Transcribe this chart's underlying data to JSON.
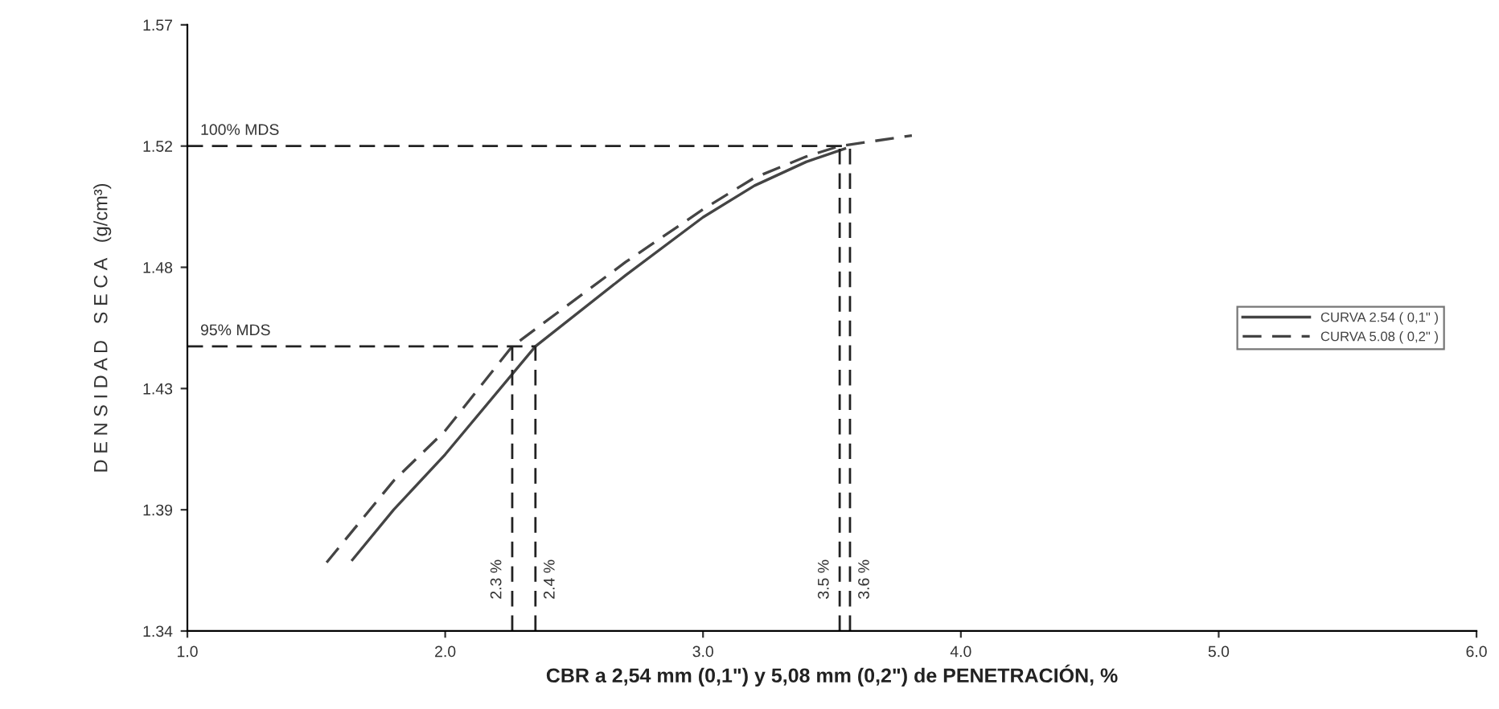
{
  "chart_data": {
    "type": "line",
    "xlabel": "CBR a 2,54 mm (0,1\") y 5,08 mm (0,2\") de PENETRACIÓN, %",
    "ylabel": "D E N S I D A D   S E C A   (g/cm³)",
    "xlim": [
      1.0,
      6.0
    ],
    "xticks": [
      {
        "value": 1.0,
        "label": "1.0"
      },
      {
        "value": 2.0,
        "label": "2.0"
      },
      {
        "value": 3.0,
        "label": "3.0"
      },
      {
        "value": 4.0,
        "label": "4.0"
      },
      {
        "value": 5.0,
        "label": "5.0"
      },
      {
        "value": 6.0,
        "label": "6.0"
      }
    ],
    "ylim": [
      1.34,
      1.57
    ],
    "yticks": [
      1.34,
      {
        "value": 1.386,
        "label": "1.39"
      },
      {
        "value": 1.432,
        "label": "1.43"
      },
      {
        "value": 1.478,
        "label": "1.48"
      },
      {
        "value": 1.524,
        "label": "1.52"
      },
      1.57
    ],
    "grid": false,
    "legend": "right",
    "marker": "none",
    "series": [
      {
        "name": "CURVA 2.54 ( 0,1\" )",
        "color": "#444444",
        "line_style": "solid",
        "x": [
          1.64,
          1.8,
          2.0,
          2.35,
          2.7,
          3.0,
          3.2,
          3.4,
          3.55
        ],
        "values": [
          1.367,
          1.386,
          1.407,
          1.448,
          1.475,
          1.497,
          1.509,
          1.518,
          1.523
        ]
      },
      {
        "name": "CURVA 5.08 ( 0,2\" )",
        "color": "#444444",
        "line_style": "dashed",
        "x": [
          1.54,
          1.8,
          2.0,
          2.26,
          2.7,
          3.0,
          3.2,
          3.4,
          3.53,
          3.81
        ],
        "values": [
          1.366,
          1.397,
          1.416,
          1.448,
          1.48,
          1.5,
          1.512,
          1.52,
          1.524,
          1.528
        ]
      }
    ],
    "ref_lines": [
      {
        "axis": "y",
        "value": 1.524,
        "label": "100% MDS",
        "color": "#222222",
        "line_style": "dashed"
      },
      {
        "axis": "y",
        "value": 1.448,
        "label": "95% MDS",
        "color": "#222222",
        "line_style": "dashed"
      },
      {
        "axis": "x",
        "value": 2.26,
        "label": "2.3 %",
        "color": "#222222",
        "line_style": "dashed"
      },
      {
        "axis": "x",
        "value": 2.35,
        "label": "2.4 %",
        "color": "#222222",
        "line_style": "dashed"
      },
      {
        "axis": "x",
        "value": 3.53,
        "label": "3.5 %",
        "color": "#222222",
        "line_style": "dashed"
      },
      {
        "axis": "x",
        "value": 3.57,
        "label": "3.6 %",
        "color": "#222222",
        "line_style": "dashed"
      }
    ]
  }
}
